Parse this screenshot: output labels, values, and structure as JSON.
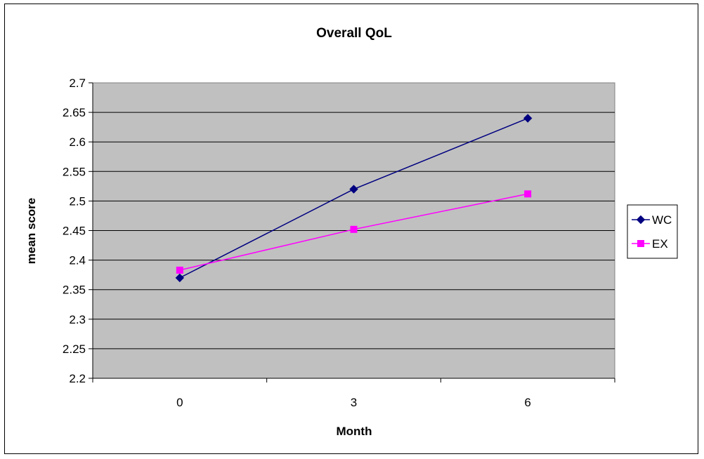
{
  "chart_data": {
    "type": "line",
    "title": "Overall QoL",
    "xlabel": "Month",
    "ylabel": "mean score",
    "categories": [
      "0",
      "3",
      "6"
    ],
    "ylim": [
      2.2,
      2.7
    ],
    "yticks": [
      2.2,
      2.25,
      2.3,
      2.35,
      2.4,
      2.45,
      2.5,
      2.55,
      2.6,
      2.65,
      2.7
    ],
    "ytick_labels": [
      "2.2",
      "2.25",
      "2.3",
      "2.35",
      "2.4",
      "2.45",
      "2.5",
      "2.55",
      "2.6",
      "2.65",
      "2.7"
    ],
    "grid": true,
    "legend_position": "right",
    "plot_background": "#C0C0C0",
    "series": [
      {
        "name": "WC",
        "values": [
          2.37,
          2.52,
          2.64
        ],
        "color": "#000080",
        "marker": "diamond"
      },
      {
        "name": "EX",
        "values": [
          2.383,
          2.452,
          2.512
        ],
        "color": "#FF00FF",
        "marker": "square"
      }
    ]
  }
}
